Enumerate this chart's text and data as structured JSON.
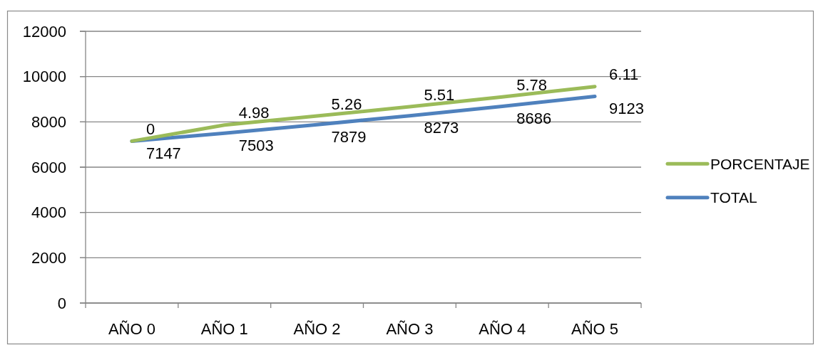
{
  "chart_data": {
    "type": "line",
    "categories": [
      "AÑO 0",
      "AÑO 1",
      "AÑO 2",
      "AÑO 3",
      "AÑO 4",
      "AÑO 5"
    ],
    "series": [
      {
        "name": "PORCENTAJE",
        "color": "#9bbb59",
        "values": [
          7150,
          7860,
          8260,
          8670,
          9100,
          9560
        ]
      },
      {
        "name": "TOTAL",
        "color": "#4f81bd",
        "values": [
          7147,
          7503,
          7879,
          8273,
          8686,
          9123
        ],
        "value_labels": [
          "7147",
          "7503",
          "7879",
          "8273",
          "8686",
          "9123"
        ]
      }
    ],
    "annotations": [
      {
        "text": "0",
        "x": "AÑO 0",
        "y": 7150
      },
      {
        "text": "4.98",
        "x": "AÑO 1",
        "y": 7860
      },
      {
        "text": "5.26",
        "x": "AÑO 2",
        "y": 8260
      },
      {
        "text": "5.51",
        "x": "AÑO 3",
        "y": 8670
      },
      {
        "text": "5.78",
        "x": "AÑO 4",
        "y": 9100
      },
      {
        "text": "6.11",
        "x": "AÑO 5",
        "y": 9560
      }
    ],
    "ylim": [
      0,
      12000
    ],
    "yticks": [
      0,
      2000,
      4000,
      6000,
      8000,
      10000,
      12000
    ],
    "grid": "y",
    "legend": "right"
  }
}
